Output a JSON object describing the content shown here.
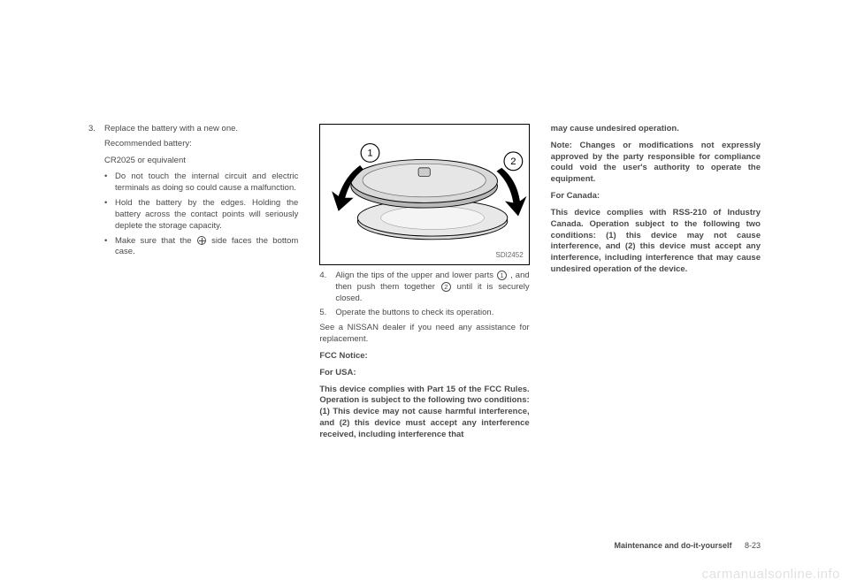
{
  "col1": {
    "step3_num": "3.",
    "step3_text": "Replace the battery with a new one.",
    "rec_label": "Recommended battery:",
    "rec_value": "CR2025 or equivalent",
    "bullets": [
      "Do not touch the internal circuit and electric terminals as doing so could cause a malfunction.",
      "Hold the battery by the edges. Holding the battery across the contact points will seriously deplete the storage capacity.",
      "Make sure that the __OPLUS__ side faces the bottom case."
    ]
  },
  "col2": {
    "figure_code": "SDI2452",
    "step4_num": "4.",
    "step4_text_a": "Align the tips of the upper and lower parts ",
    "step4_text_b": " , and then push them together ",
    "step4_text_c": " until it is securely closed.",
    "circ1": "1",
    "circ2": "2",
    "step5_num": "5.",
    "step5_text": "Operate the buttons to check its operation.",
    "dealer_text": "See a NISSAN dealer if you need any assistance for replacement.",
    "fcc_label": "FCC Notice:",
    "usa_label": "For USA:",
    "usa_text": "This device complies with Part 15 of the FCC Rules. Operation is subject to the following two conditions: (1) This device may not cause harmful interference, and (2) this device must accept any interference received, including interference that"
  },
  "col3": {
    "cont_text": "may cause undesired operation.",
    "note_text": "Note: Changes or modifications not expressly approved by the party responsible for compliance could void the user's authority to operate the equipment.",
    "canada_label": "For Canada:",
    "canada_text": "This device complies with RSS-210 of Industry Canada. Operation subject to the following two conditions: (1) this device may not cause interference, and (2) this device must accept any interference, including interference that may cause undesired operation of the device."
  },
  "footer": {
    "section": "Maintenance and do-it-yourself",
    "page": "8-23"
  },
  "watermark": "carmanualsonline.info",
  "figure": {
    "marker1": "1",
    "marker2": "2",
    "colors": {
      "stroke": "#000000",
      "fill_light": "#d9d9d9",
      "fill_mid": "#b8b8b8",
      "fill_dark": "#888888",
      "arrow": "#000000"
    }
  }
}
